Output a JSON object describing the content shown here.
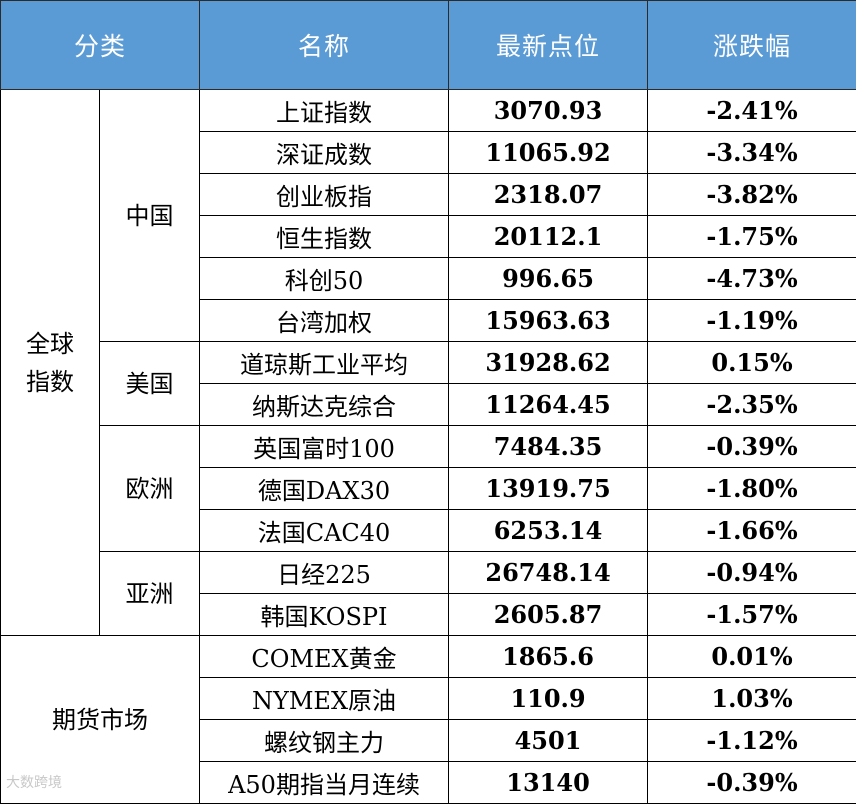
{
  "headers": {
    "category": "分类",
    "name": "名称",
    "latest": "最新点位",
    "change": "涨跌幅"
  },
  "groups": {
    "global": "全球\n指数",
    "futures": "期货市场",
    "china": "中国",
    "usa": "美国",
    "europe": "欧洲",
    "asia": "亚洲"
  },
  "rows": [
    {
      "name": "上证指数",
      "value": "3070.93",
      "change": "-2.41%"
    },
    {
      "name": "深证成数",
      "value": "11065.92",
      "change": "-3.34%"
    },
    {
      "name": "创业板指",
      "value": "2318.07",
      "change": "-3.82%"
    },
    {
      "name": "恒生指数",
      "value": "20112.1",
      "change": "-1.75%"
    },
    {
      "name": "科创50",
      "value": "996.65",
      "change": "-4.73%"
    },
    {
      "name": "台湾加权",
      "value": "15963.63",
      "change": "-1.19%"
    },
    {
      "name": "道琼斯工业平均",
      "value": "31928.62",
      "change": "0.15%"
    },
    {
      "name": "纳斯达克综合",
      "value": "11264.45",
      "change": "-2.35%"
    },
    {
      "name": "英国富时100",
      "value": "7484.35",
      "change": "-0.39%"
    },
    {
      "name": "德国DAX30",
      "value": "13919.75",
      "change": "-1.80%"
    },
    {
      "name": "法国CAC40",
      "value": "6253.14",
      "change": "-1.66%"
    },
    {
      "name": "日经225",
      "value": "26748.14",
      "change": "-0.94%"
    },
    {
      "name": "韩国KOSPI",
      "value": "2605.87",
      "change": "-1.57%"
    },
    {
      "name": "COMEX黄金",
      "value": "1865.6",
      "change": "0.01%"
    },
    {
      "name": "NYMEX原油",
      "value": "110.9",
      "change": "1.03%"
    },
    {
      "name": "螺纹钢主力",
      "value": "4501",
      "change": "-1.12%"
    },
    {
      "name": "A50期指当月连续",
      "value": "13140",
      "change": "-0.39%"
    }
  ],
  "colors": {
    "header_bg": "#5b9bd5",
    "header_text": "#ffffff",
    "down": "#76923c",
    "up": "#ff0000"
  },
  "watermark": "大数跨境"
}
